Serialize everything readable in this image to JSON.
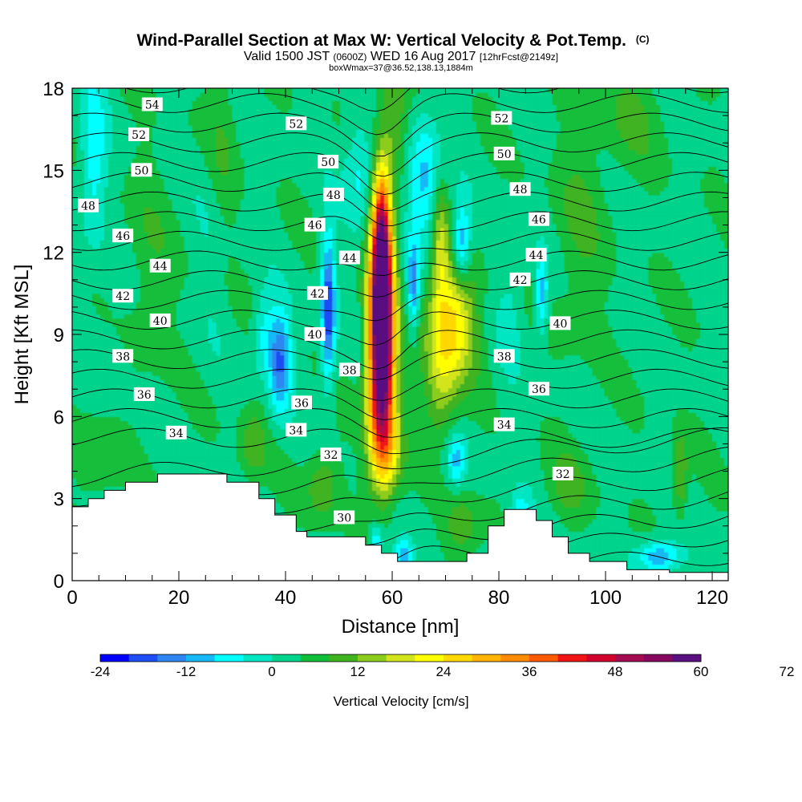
{
  "title": {
    "main": "Wind-Parallel Section at Max W: Vertical Velocity & Pot.Temp.",
    "copyright": "(C)",
    "valid_prefix": "Valid 1500 JST",
    "valid_utc": "(0600Z)",
    "valid_suffix": "WED 16 Aug 2017",
    "forecast": "[12hrFcst@2149z]",
    "box": "boxWmax=37@36.52,138.13,1884m"
  },
  "chart_data": {
    "type": "heatmap",
    "xlabel": "Distance [nm]",
    "ylabel": "Height [Kft MSL]",
    "xlim": [
      0,
      123
    ],
    "ylim": [
      0,
      18
    ],
    "x_ticks": [
      "0",
      "20",
      "40",
      "60",
      "80",
      "100",
      "120"
    ],
    "y_ticks": [
      "0",
      "3",
      "6",
      "9",
      "12",
      "15",
      "18"
    ],
    "colorbar": {
      "title": "Vertical Velocity [cm/s]",
      "levels_min": -24,
      "level_step": 4,
      "labels": [
        "-24",
        "-12",
        "0",
        "12",
        "24",
        "36",
        "48",
        "60",
        "72"
      ],
      "colors": [
        "#0000ff",
        "#1f4ef4",
        "#2f86f1",
        "#16b8f5",
        "#00ffff",
        "#00e6c2",
        "#00d38b",
        "#12bf3a",
        "#3fb320",
        "#8dcc1f",
        "#d2e51c",
        "#ffff00",
        "#ffd800",
        "#ffb400",
        "#ff8c00",
        "#ff5a00",
        "#f01414",
        "#d2002d",
        "#a60c52",
        "#86095f",
        "#5a1080"
      ]
    },
    "contours": {
      "variable": "Potential temperature",
      "labels": [
        {
          "text": "54",
          "x": 15,
          "y": 17.4
        },
        {
          "text": "52",
          "x": 12.5,
          "y": 16.3
        },
        {
          "text": "52",
          "x": 42,
          "y": 16.7
        },
        {
          "text": "52",
          "x": 80.5,
          "y": 16.9
        },
        {
          "text": "50",
          "x": 13,
          "y": 15.0
        },
        {
          "text": "50",
          "x": 48,
          "y": 15.3
        },
        {
          "text": "50",
          "x": 81,
          "y": 15.6
        },
        {
          "text": "48",
          "x": 3,
          "y": 13.7
        },
        {
          "text": "48",
          "x": 49,
          "y": 14.1
        },
        {
          "text": "48",
          "x": 84,
          "y": 14.3
        },
        {
          "text": "46",
          "x": 9.5,
          "y": 12.6
        },
        {
          "text": "46",
          "x": 45.5,
          "y": 13.0
        },
        {
          "text": "46",
          "x": 87.5,
          "y": 13.2
        },
        {
          "text": "44",
          "x": 16.5,
          "y": 11.5
        },
        {
          "text": "44",
          "x": 52,
          "y": 11.8
        },
        {
          "text": "44",
          "x": 87,
          "y": 11.9
        },
        {
          "text": "42",
          "x": 9.5,
          "y": 10.4
        },
        {
          "text": "42",
          "x": 46,
          "y": 10.5
        },
        {
          "text": "42",
          "x": 84,
          "y": 11.0
        },
        {
          "text": "40",
          "x": 16.5,
          "y": 9.5
        },
        {
          "text": "40",
          "x": 45.5,
          "y": 9.0
        },
        {
          "text": "40",
          "x": 91.5,
          "y": 9.4
        },
        {
          "text": "38",
          "x": 9.5,
          "y": 8.2
        },
        {
          "text": "38",
          "x": 52,
          "y": 7.7
        },
        {
          "text": "38",
          "x": 81,
          "y": 8.2
        },
        {
          "text": "36",
          "x": 13.5,
          "y": 6.8
        },
        {
          "text": "36",
          "x": 43,
          "y": 6.5
        },
        {
          "text": "36",
          "x": 87.5,
          "y": 7.0
        },
        {
          "text": "34",
          "x": 19.5,
          "y": 5.4
        },
        {
          "text": "34",
          "x": 42,
          "y": 5.5
        },
        {
          "text": "34",
          "x": 81,
          "y": 5.7
        },
        {
          "text": "32",
          "x": 48.5,
          "y": 4.6
        },
        {
          "text": "32",
          "x": 92,
          "y": 3.9
        },
        {
          "text": "30",
          "x": 51,
          "y": 2.3
        }
      ]
    }
  }
}
